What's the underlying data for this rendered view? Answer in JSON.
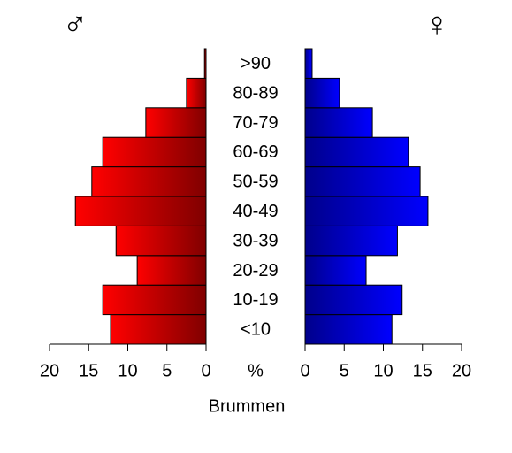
{
  "chart_data": {
    "type": "population-pyramid",
    "xlabel": "Brummen",
    "center_label": "%",
    "categories": [
      "<10",
      "10-19",
      "20-29",
      "30-39",
      "40-49",
      "50-59",
      "60-69",
      "70-79",
      "80-89",
      ">90"
    ],
    "series": [
      {
        "name": "♂",
        "side": "left",
        "color": [
          "#ff0000",
          "#800000"
        ],
        "values": [
          12.2,
          13.2,
          8.8,
          11.5,
          16.7,
          14.6,
          13.2,
          7.7,
          2.5,
          0.2
        ]
      },
      {
        "name": "♀",
        "side": "right",
        "color": [
          "#00008b",
          "#0000ff"
        ],
        "values": [
          11.1,
          12.4,
          7.8,
          11.8,
          15.7,
          14.7,
          13.2,
          8.6,
          4.4,
          0.9
        ]
      }
    ],
    "xlim": [
      0,
      20
    ],
    "xticks": [
      0,
      5,
      10,
      15,
      20
    ]
  }
}
